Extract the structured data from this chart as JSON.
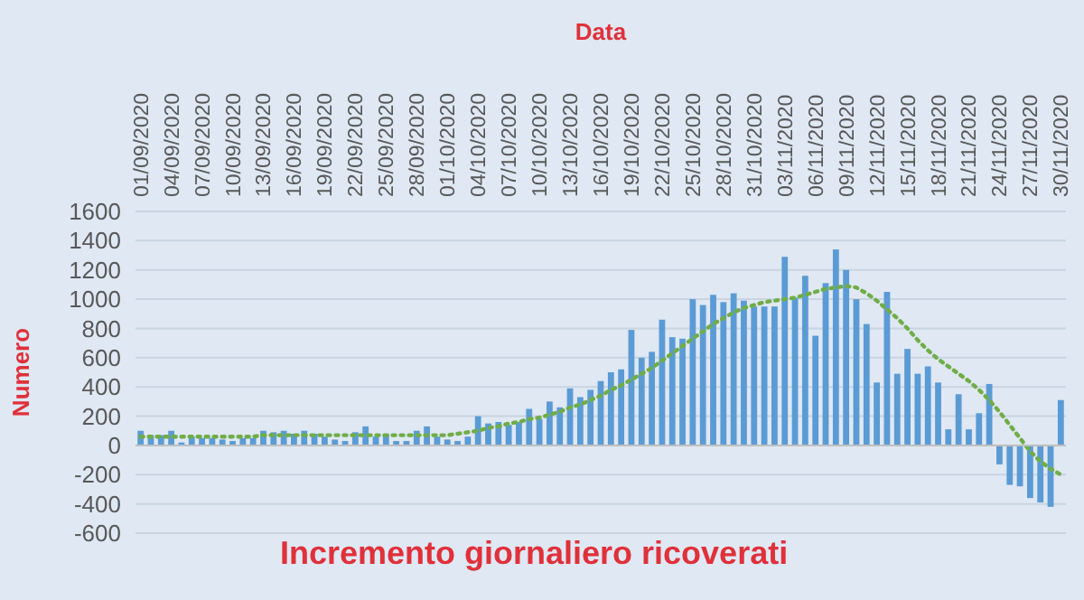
{
  "chart_data": {
    "type": "bar",
    "xlabel": "Data",
    "ylabel": "Numero",
    "annotations": [
      "Incremento giornaliero ricoverati"
    ],
    "categories": [
      "01/09/2020",
      null,
      null,
      "04/09/2020",
      null,
      null,
      "07/09/2020",
      null,
      null,
      "10/09/2020",
      null,
      null,
      "13/09/2020",
      null,
      null,
      "16/09/2020",
      null,
      null,
      "19/09/2020",
      null,
      null,
      "22/09/2020",
      null,
      null,
      "25/09/2020",
      null,
      null,
      "28/09/2020",
      null,
      null,
      "01/10/2020",
      null,
      null,
      "04/10/2020",
      null,
      null,
      "07/10/2020",
      null,
      null,
      "10/10/2020",
      null,
      null,
      "13/10/2020",
      null,
      null,
      "16/10/2020",
      null,
      null,
      "19/10/2020",
      null,
      null,
      "22/10/2020",
      null,
      null,
      "25/10/2020",
      null,
      null,
      "28/10/2020",
      null,
      null,
      "31/10/2020",
      null,
      null,
      "03/11/2020",
      null,
      null,
      "06/11/2020",
      null,
      null,
      "09/11/2020",
      null,
      null,
      "12/11/2020",
      null,
      null,
      "15/11/2020",
      null,
      null,
      "18/11/2020",
      null,
      null,
      "21/11/2020",
      null,
      null,
      "24/11/2020",
      null,
      null,
      "27/11/2020",
      null,
      null,
      "30/11/2020"
    ],
    "series": [
      {
        "color": "#5b9bd5",
        "values": [
          100,
          70,
          70,
          100,
          20,
          60,
          50,
          50,
          40,
          30,
          50,
          50,
          100,
          90,
          100,
          80,
          100,
          80,
          60,
          40,
          30,
          90,
          130,
          60,
          80,
          30,
          30,
          100,
          130,
          60,
          40,
          30,
          60,
          200,
          150,
          160,
          140,
          160,
          250,
          180,
          300,
          260,
          390,
          330,
          380,
          440,
          500,
          520,
          790,
          600,
          640,
          860,
          740,
          730,
          1000,
          960,
          1030,
          980,
          1040,
          990,
          950,
          950,
          950,
          1290,
          1010,
          1160,
          750,
          1110,
          1340,
          1200,
          1000,
          830,
          430,
          1050,
          490,
          660,
          490,
          540,
          430,
          110,
          350,
          110,
          220,
          420,
          -130,
          -270,
          -280,
          -360,
          -390,
          -420,
          310
        ]
      },
      {
        "type": "line",
        "color": "#70ad47",
        "line_style": "dotted",
        "values": [
          60,
          60,
          60,
          60,
          60,
          60,
          60,
          60,
          60,
          60,
          60,
          60,
          70,
          70,
          70,
          70,
          70,
          70,
          70,
          70,
          70,
          70,
          70,
          70,
          70,
          70,
          70,
          70,
          70,
          70,
          70,
          80,
          90,
          100,
          120,
          130,
          150,
          160,
          180,
          190,
          210,
          230,
          260,
          280,
          310,
          340,
          380,
          410,
          450,
          490,
          530,
          580,
          630,
          680,
          730,
          780,
          830,
          870,
          910,
          940,
          960,
          980,
          990,
          1000,
          1010,
          1030,
          1050,
          1070,
          1080,
          1090,
          1080,
          1040,
          990,
          930,
          870,
          800,
          720,
          650,
          590,
          540,
          490,
          440,
          380,
          310,
          230,
          140,
          50,
          -40,
          -110,
          -160,
          -200
        ]
      }
    ],
    "ylim": [
      -600,
      1600
    ],
    "yticks": [
      -600,
      -400,
      -200,
      0,
      200,
      400,
      600,
      800,
      1000,
      1200,
      1400,
      1600
    ],
    "grid": "y"
  }
}
